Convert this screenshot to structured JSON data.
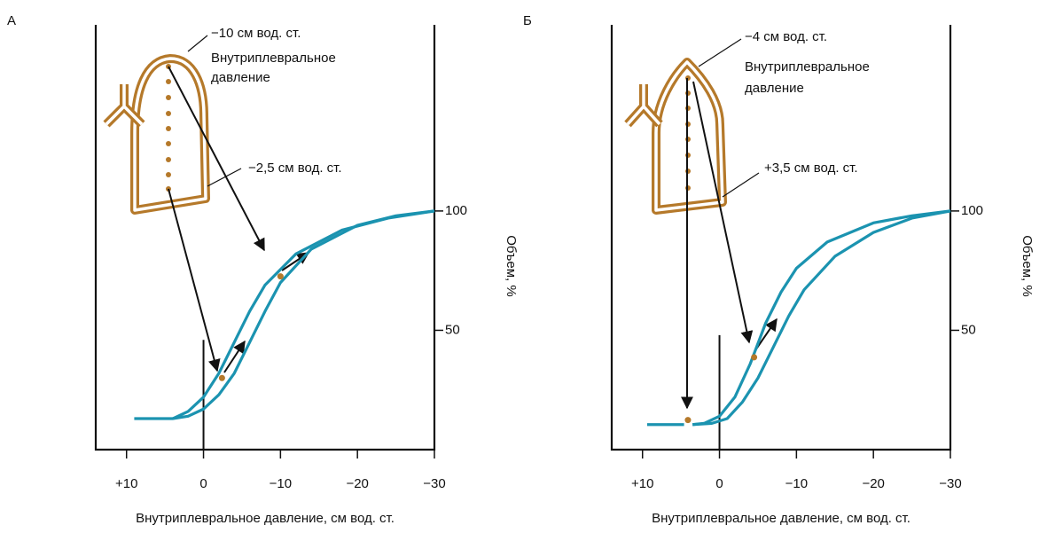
{
  "chart_data": [
    {
      "type": "line",
      "panel_label": "А",
      "annotations": [
        "−10 см вод. ст.",
        [
          "Внутриплевральное",
          "давление"
        ],
        "−2,5 см вод. ст."
      ],
      "xlabel": "Внутриплевральное давление, см вод. ст.",
      "ylabel": "Объем, %",
      "xlim": [
        14,
        -30
      ],
      "ylim": [
        0,
        178
      ],
      "xticks": [
        {
          "value": 10,
          "label": "+10"
        },
        0,
        {
          "value": -10,
          "label": "−10"
        },
        {
          "value": -20,
          "label": "−20"
        },
        {
          "value": -30,
          "label": "−30"
        }
      ],
      "yticks": [
        50,
        100
      ],
      "vline": {
        "x": 0,
        "y": [
          0,
          46
        ]
      },
      "series": [
        {
          "color": "#1b93b0",
          "x": [
            9,
            4,
            2,
            0,
            -2,
            -4,
            -6,
            -8,
            -10,
            -14,
            -20,
            -25,
            -30
          ],
          "values": [
            13,
            13,
            14,
            17,
            23,
            32,
            45,
            58,
            70,
            84,
            94,
            98,
            100
          ]
        },
        {
          "color": "#1b93b0",
          "x": [
            4,
            2,
            0,
            -2,
            -4,
            -6,
            -8,
            -12,
            -18,
            -24,
            -30
          ],
          "values": [
            13,
            16,
            22,
            32,
            45,
            58,
            69,
            82,
            92,
            97,
            100
          ]
        }
      ],
      "points": {
        "color": "#b5792a",
        "x": [
          -10,
          -2.4
        ],
        "values": [
          72.6,
          30
        ]
      }
    },
    {
      "type": "line",
      "panel_label": "Б",
      "annotations": [
        "−4 см вод. ст.",
        [
          "Внутриплевральное",
          "давление"
        ],
        "+3,5 см вод. ст."
      ],
      "xlabel": "Внутриплевральное давление, см вод. ст.",
      "ylabel": "Объем, %",
      "xlim": [
        14,
        -30
      ],
      "ylim": [
        0,
        178
      ],
      "xticks": [
        {
          "value": 10,
          "label": "+10"
        },
        0,
        {
          "value": -10,
          "label": "−10"
        },
        {
          "value": -20,
          "label": "−20"
        },
        {
          "value": -30,
          "label": "−30"
        }
      ],
      "yticks": [
        50,
        100
      ],
      "vline": {
        "x": 0,
        "y": [
          0,
          48
        ]
      },
      "series": [
        {
          "color": "#1b93b0",
          "x": [
            9.4,
            4.6
          ],
          "values": [
            10.5,
            10.5
          ]
        },
        {
          "color": "#1b93b0",
          "x": [
            3.5,
            2,
            0,
            -2,
            -4,
            -6,
            -8,
            -10,
            -14,
            -20,
            -25,
            -30
          ],
          "values": [
            10.5,
            11,
            14,
            22,
            36,
            53,
            66,
            76,
            87,
            95,
            98,
            100
          ]
        },
        {
          "color": "#1b93b0",
          "x": [
            3.5,
            1,
            -1,
            -3,
            -5,
            -7,
            -9,
            -11,
            -15,
            -20,
            -25,
            -30
          ],
          "values": [
            10.5,
            11,
            13,
            20,
            30,
            43,
            56,
            67,
            81,
            91,
            97,
            100
          ]
        }
      ],
      "points": {
        "color": "#b5792a",
        "x": [
          4.1,
          -4.5
        ],
        "values": [
          12.4,
          38.7
        ]
      }
    }
  ]
}
